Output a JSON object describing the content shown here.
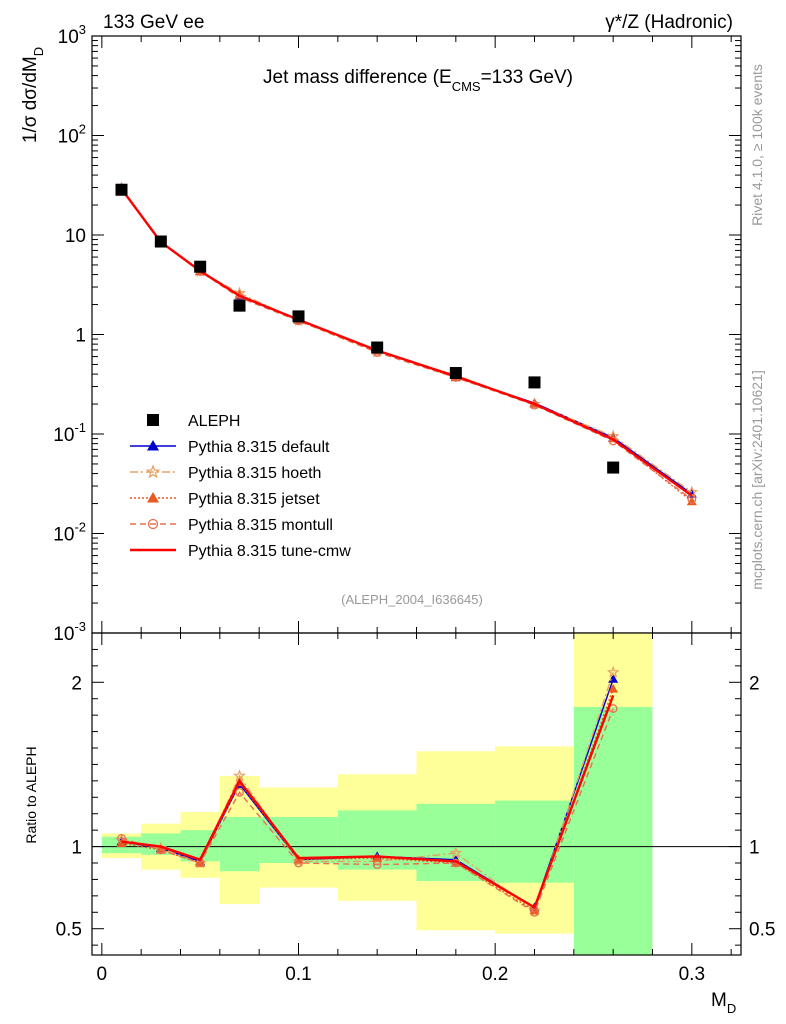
{
  "header": {
    "left": "133 GeV ee",
    "right_prefix": "γ*/Z (Hadronic)"
  },
  "side_texts": {
    "rivet": "Rivet 4.1.0, ≥ 100k events",
    "mcplots": "mcplots.cern.ch [arXiv:2401.10621]"
  },
  "analysis_id": "(ALEPH_2004_I636645)",
  "chart_data": {
    "type": "line",
    "title": "Jet mass difference (E_CMS=133 GeV)",
    "title_main": "Jet mass difference (E",
    "title_sub": "CMS",
    "title_tail": "=133 GeV)",
    "xlabel": "M_D",
    "xlabel_main": "M",
    "xlabel_sub": "D",
    "ylabel": "1/σ dσ/dM_D",
    "ylabel_main": "1/σ  dσ/dM",
    "ylabel_sub": "D",
    "ratio_ylabel": "Ratio to ALEPH",
    "xlim": [
      -0.005,
      0.325
    ],
    "ylim_log": [
      0.001,
      1000
    ],
    "ratio_ylim": [
      0.34,
      2.3
    ],
    "x_ticks": [
      "0",
      "0.1",
      "0.2",
      "0.3"
    ],
    "y_ticks": [
      "10^-3",
      "10^-2",
      "10^-1",
      "1",
      "10",
      "10^2",
      "10^3"
    ],
    "ratio_ticks": [
      "0.5",
      "1",
      "2"
    ],
    "x": [
      0.01,
      0.03,
      0.05,
      0.07,
      0.1,
      0.14,
      0.18,
      0.22,
      0.26,
      0.3
    ],
    "bin_edges": [
      0,
      0.02,
      0.04,
      0.06,
      0.08,
      0.12,
      0.16,
      0.2,
      0.24,
      0.28,
      0.32
    ],
    "data": {
      "name": "ALEPH",
      "values": [
        28.5,
        8.6,
        4.8,
        1.95,
        1.52,
        0.74,
        0.41,
        0.33,
        0.046,
        null
      ]
    },
    "series": [
      {
        "name": "Pythia 8.315 default",
        "color": "#0000cc",
        "dash": "",
        "marker": "triangle",
        "values": [
          29.3,
          8.5,
          4.35,
          2.45,
          1.4,
          0.69,
          0.375,
          0.205,
          0.092,
          0.025
        ],
        "ratio": [
          1.03,
          0.99,
          0.91,
          1.38,
          0.92,
          0.94,
          0.92,
          0.63,
          2.02,
          null
        ]
      },
      {
        "name": "Pythia 8.315 hoeth",
        "color": "#e8a060",
        "dash": "8,3,2,3",
        "marker": "star",
        "values": [
          29.5,
          8.55,
          4.3,
          2.6,
          1.38,
          0.67,
          0.39,
          0.2,
          0.095,
          0.026
        ],
        "ratio": [
          1.04,
          0.99,
          0.9,
          1.43,
          0.91,
          0.91,
          0.96,
          0.61,
          2.06,
          null
        ]
      },
      {
        "name": "Pythia 8.315 jetset",
        "color": "#e85a20",
        "dash": "2,2",
        "marker": "triangle",
        "values": [
          29.0,
          8.45,
          4.3,
          2.5,
          1.4,
          0.69,
          0.37,
          0.2,
          0.09,
          0.021
        ],
        "ratio": [
          1.02,
          0.98,
          0.9,
          1.39,
          0.92,
          0.93,
          0.9,
          0.61,
          1.96,
          null
        ]
      },
      {
        "name": "Pythia 8.315 montull",
        "color": "#e87050",
        "dash": "6,4",
        "marker": "circle",
        "values": [
          29.8,
          8.4,
          4.3,
          2.35,
          1.37,
          0.66,
          0.37,
          0.195,
          0.085,
          0.022
        ],
        "ratio": [
          1.05,
          0.98,
          0.9,
          1.33,
          0.9,
          0.89,
          0.9,
          0.6,
          1.84,
          null
        ]
      },
      {
        "name": "Pythia 8.315 tune-cmw",
        "color": "#ff0000",
        "dash": "",
        "marker": "none",
        "values": [
          29.0,
          8.5,
          4.35,
          2.45,
          1.41,
          0.69,
          0.38,
          0.2,
          0.088,
          0.024
        ],
        "ratio": [
          1.03,
          1.0,
          0.92,
          1.4,
          0.93,
          0.94,
          0.91,
          0.63,
          1.92,
          null
        ]
      }
    ],
    "ratio_bands": {
      "inner_low": [
        0.96,
        0.95,
        0.91,
        0.85,
        0.9,
        0.86,
        0.79,
        0.78,
        0.34,
        null
      ],
      "inner_high": [
        1.06,
        1.08,
        1.1,
        1.18,
        1.18,
        1.22,
        1.26,
        1.28,
        1.85,
        null
      ],
      "outer_low": [
        0.93,
        0.86,
        0.81,
        0.65,
        0.75,
        0.67,
        0.49,
        0.47,
        0.34,
        null
      ],
      "outer_high": [
        1.08,
        1.14,
        1.21,
        1.43,
        1.36,
        1.44,
        1.58,
        1.61,
        2.3,
        null
      ]
    },
    "legend_position": "lower-left"
  }
}
